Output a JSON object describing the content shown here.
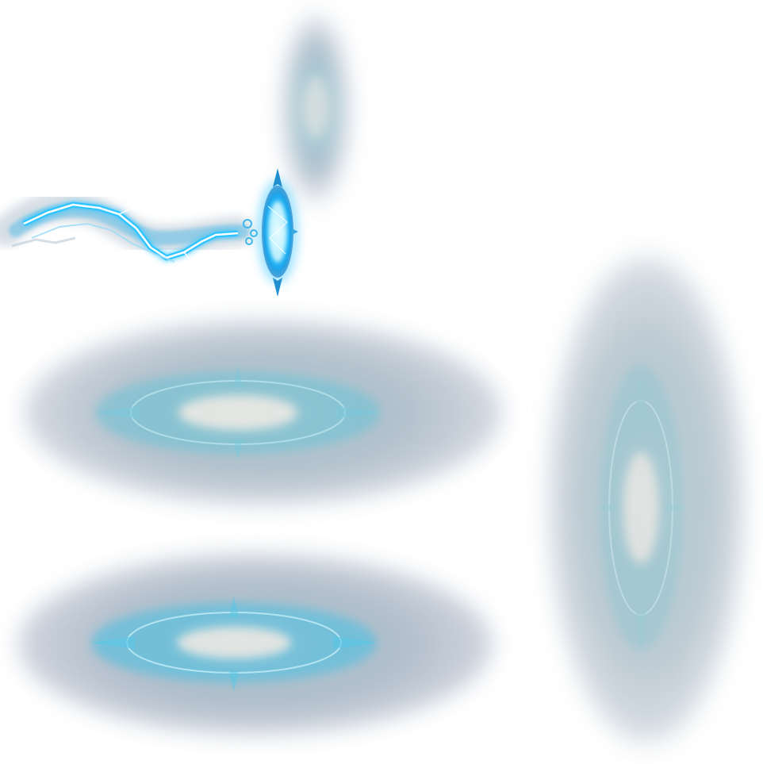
{
  "sprite_sheet": {
    "background": "#ffffff",
    "frames": [
      {
        "name": "glow-small-vertical",
        "orientation": "vertical",
        "color": "#8fb4c8"
      },
      {
        "name": "lightning-bolt",
        "orientation": "horizontal",
        "color": "#35c8ff"
      },
      {
        "name": "portal-disc",
        "orientation": "vertical",
        "color": "#2ec4ff"
      },
      {
        "name": "aura-ring-horizontal-1",
        "orientation": "horizontal",
        "color": "#6fc4d6"
      },
      {
        "name": "aura-ring-horizontal-2",
        "orientation": "horizontal",
        "color": "#55c0e0"
      },
      {
        "name": "aura-ring-vertical",
        "orientation": "vertical",
        "color": "#9cc6cf"
      }
    ],
    "colors": {
      "glow_outer": "#7a8fa8",
      "glow_mid": "#6fb6c6",
      "glow_core": "#e7e4e0",
      "electric": "#2ec4ff",
      "electric_core": "#ffffff"
    }
  }
}
